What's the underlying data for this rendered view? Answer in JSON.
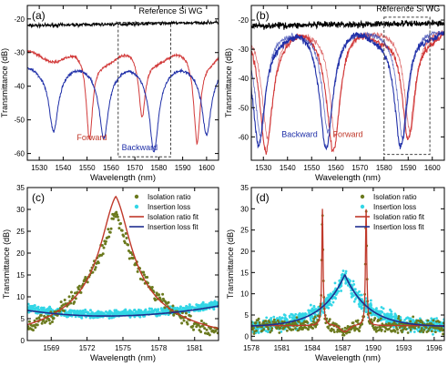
{
  "chart_data": [
    {
      "id": "a",
      "type": "line",
      "panel_label": "(a)",
      "xlabel": "Wavelength (nm)",
      "ylabel": "Transmittance (dB)",
      "xlim": [
        1525,
        1605
      ],
      "ylim": [
        -62,
        -16
      ],
      "xticks": [
        1530,
        1540,
        1550,
        1560,
        1570,
        1580,
        1590,
        1600
      ],
      "yticks": [
        -60,
        -50,
        -40,
        -30,
        -20
      ],
      "annotations": [
        {
          "text": "Reference Si WG",
          "x": 1585,
          "y": -18.5,
          "color": "#000000"
        },
        {
          "text": "Forward",
          "x": 1552,
          "y": -56,
          "color": "#c0392b"
        },
        {
          "text": "Backward",
          "x": 1572,
          "y": -59,
          "color": "#1f2fa8"
        }
      ],
      "dashed_box": {
        "x": [
          1563,
          1585
        ],
        "y": [
          -61,
          -21
        ]
      },
      "series": [
        {
          "color": "#000000",
          "baseline": -22,
          "dips": []
        },
        {
          "color": "#d23a3a",
          "baseline": -31,
          "dips": [
            {
              "x": 1551,
              "depth": -56,
              "width": 1.6
            },
            {
              "x": 1573,
              "depth": -49,
              "width": 1.6
            },
            {
              "x": 1596,
              "depth": -56,
              "width": 1.6
            }
          ]
        },
        {
          "color": "#1f2fa8",
          "baseline": -35,
          "dips": [
            {
              "x": 1536,
              "depth": -52,
              "width": 2.2
            },
            {
              "x": 1557,
              "depth": -54,
              "width": 2.2
            },
            {
              "x": 1578,
              "depth": -58,
              "width": 2.2
            },
            {
              "x": 1600,
              "depth": -53,
              "width": 2.2
            }
          ]
        }
      ]
    },
    {
      "id": "b",
      "type": "line",
      "panel_label": "(b)",
      "xlabel": "Wavelength (nm)",
      "ylabel": "Transmittance (dB)",
      "xlim": [
        1525,
        1605
      ],
      "ylim": [
        -68,
        -15
      ],
      "xticks": [
        1530,
        1540,
        1550,
        1560,
        1570,
        1580,
        1590,
        1600
      ],
      "yticks": [
        -60,
        -50,
        -40,
        -30,
        -20
      ],
      "annotations": [
        {
          "text": "Reference Si WG",
          "x": 1590,
          "y": -17,
          "color": "#000000"
        },
        {
          "text": "Backward",
          "x": 1545,
          "y": -60,
          "color": "#1f2fa8"
        },
        {
          "text": "Forward",
          "x": 1565,
          "y": -60,
          "color": "#c0392b"
        }
      ],
      "dashed_box": {
        "x": [
          1580,
          1599
        ],
        "y": [
          -66,
          -19
        ]
      },
      "series": [
        {
          "color": "#000000",
          "baseline": -22,
          "dips": []
        },
        {
          "color": "#d23a3a",
          "baseline": -22.5,
          "dips": [
            {
              "x": 1531,
              "depth": -64,
              "width": 3.2
            },
            {
              "x": 1559,
              "depth": -63,
              "width": 3.2
            },
            {
              "x": 1590,
              "depth": -62,
              "width": 3.2
            }
          ]
        },
        {
          "color": "#1f2fa8",
          "baseline": -22.5,
          "dips": [
            {
              "x": 1528,
              "depth": -63,
              "width": 3.2
            },
            {
              "x": 1556,
              "depth": -62,
              "width": 3.2
            },
            {
              "x": 1587,
              "depth": -64,
              "width": 3.2
            }
          ]
        }
      ]
    },
    {
      "id": "c",
      "type": "scatter",
      "panel_label": "(c)",
      "xlabel": "Wavelength (nm)",
      "ylabel": "Transmittance (dB)",
      "xlim": [
        1567,
        1583
      ],
      "ylim": [
        0,
        35
      ],
      "xticks": [
        1569,
        1572,
        1575,
        1578,
        1581
      ],
      "yticks": [
        0,
        5,
        10,
        15,
        20,
        25,
        30,
        35
      ],
      "legend": {
        "position": "top-right",
        "entries": [
          {
            "label": "Isolation ratio",
            "color": "#6b7a1e",
            "kind": "marker"
          },
          {
            "label": "Insertion loss",
            "color": "#33d6e6",
            "kind": "marker"
          },
          {
            "label": "Isolation ratio fit",
            "color": "#c0392b",
            "kind": "line"
          },
          {
            "label": "Insertion loss fit",
            "color": "#1f2f8f",
            "kind": "line"
          }
        ]
      },
      "isolation_fit": {
        "center": 1574.4,
        "peak": 40,
        "amp": 22,
        "base": 3.5,
        "halfwidth": 1.6
      },
      "insertion_fit": {
        "min_x": 1573.5,
        "min_y": 5.6,
        "left_y": 6.9,
        "right_y": 7.9
      },
      "isolation_data": {
        "center": 1574.4,
        "peak": 29,
        "noise": 1.2
      },
      "insertion_data": {
        "noise": 0.7
      }
    },
    {
      "id": "d",
      "type": "scatter",
      "panel_label": "(d)",
      "xlabel": "Wavelength (nm)",
      "ylabel": "Transmittance (dB)",
      "xlim": [
        1578,
        1597
      ],
      "ylim": [
        -1,
        35
      ],
      "xticks": [
        1578,
        1581,
        1584,
        1587,
        1590,
        1593,
        1596
      ],
      "yticks": [
        0,
        5,
        10,
        15,
        20,
        25,
        30,
        35
      ],
      "legend": {
        "position": "top-right",
        "entries": [
          {
            "label": "Isolation ratio",
            "color": "#6b7a1e",
            "kind": "marker"
          },
          {
            "label": "Insertion loss",
            "color": "#33d6e6",
            "kind": "marker"
          },
          {
            "label": "Isolation ratio fit",
            "color": "#c0392b",
            "kind": "line"
          },
          {
            "label": "Insertion loss fit",
            "color": "#1f2f8f",
            "kind": "line"
          }
        ]
      },
      "resonances": [
        1585.0,
        1589.3
      ],
      "center_dip": 1587.2,
      "insertion_peak": {
        "x": 1587.2,
        "y": 14.5,
        "base": 2.2
      }
    }
  ]
}
